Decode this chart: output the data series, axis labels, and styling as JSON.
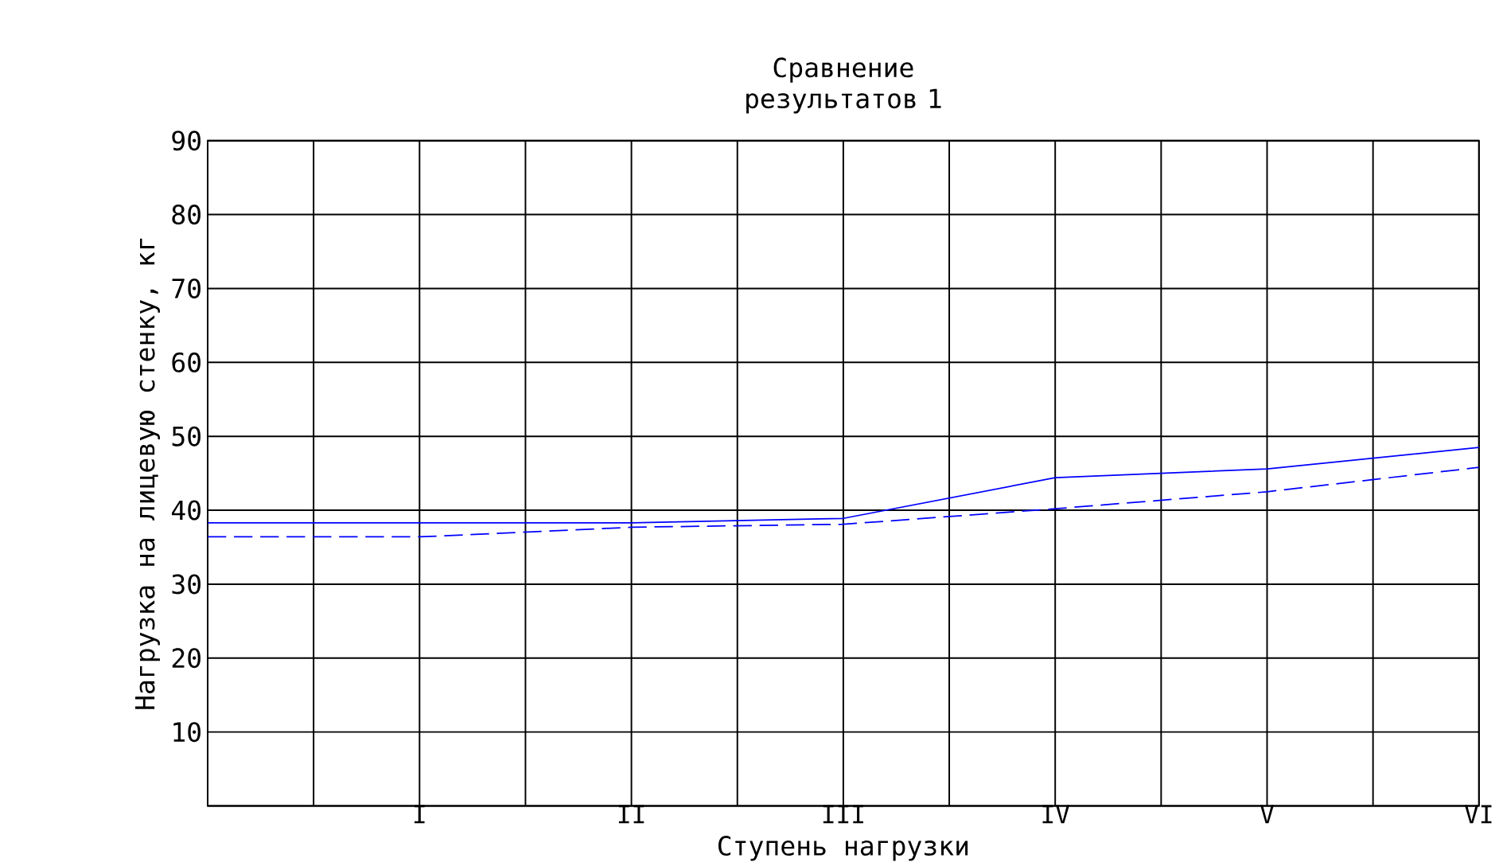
{
  "chart_data": {
    "type": "line",
    "title": "Сравнение результатов 1",
    "xlabel": "Ступень нагрузки",
    "ylabel": "Нагрузка на лицевую стенку, кг",
    "categories": [
      null,
      "I",
      "II",
      "III",
      "IV",
      "V",
      "VI"
    ],
    "series": [
      {
        "color": "#0000ff",
        "line_style": "solid",
        "values": [
          38.3,
          38.3,
          38.3,
          38.9,
          44.4,
          45.6,
          48.5
        ]
      },
      {
        "color": "#0000ff",
        "line_style": "dashed",
        "values": [
          36.4,
          36.4,
          37.7,
          38.1,
          40.2,
          42.5,
          45.8
        ]
      }
    ],
    "ylim": [
      0,
      90
    ],
    "yticks": [
      {
        "value": 0,
        "label": null
      },
      10,
      20,
      30,
      40,
      50,
      60,
      70,
      80,
      90
    ],
    "grid": true,
    "marker": "none"
  }
}
